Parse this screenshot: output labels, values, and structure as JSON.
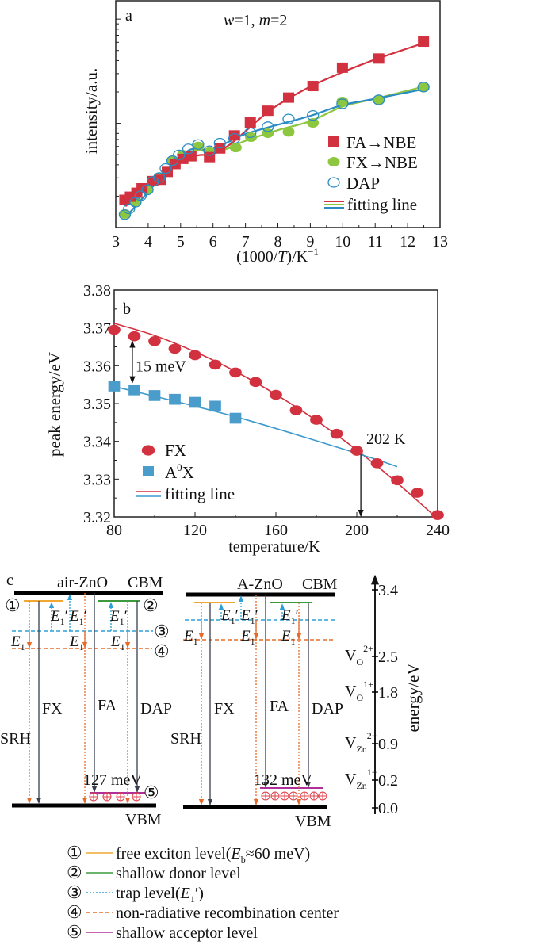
{
  "chart_data": [
    {
      "type": "scatter",
      "panel_label": "a",
      "annotation": {
        "w_var": "w",
        "w_val": "=1, ",
        "m_var": "m",
        "m_val": "=2"
      },
      "xlabel": {
        "pre": "(1000/",
        "var": "T",
        "post": ")/K",
        "sup": "−1"
      },
      "ylabel": "intensity/a.u.",
      "xlim": [
        3,
        13
      ],
      "ylim": [
        0.1,
        15
      ],
      "yscale": "log",
      "ytick_labels_shown": false,
      "xticks": [
        "3",
        "4",
        "5",
        "6",
        "7",
        "8",
        "9",
        "10",
        "11",
        "12",
        "13"
      ],
      "legend_position": "bottom-right",
      "colors": {
        "FA": "#d2313f",
        "FX": "#8dc63f",
        "DAP": "#2b8cc4"
      },
      "series": [
        {
          "name": "FA→NBE",
          "marker": "square",
          "color": "#d2313f",
          "x": [
            3.28,
            3.45,
            3.65,
            3.81,
            4.14,
            4.38,
            4.59,
            4.83,
            5.07,
            5.32,
            5.89,
            6.21,
            6.66,
            7.15,
            7.69,
            8.33,
            9.08,
            9.99,
            11.11,
            12.49
          ],
          "y": [
            0.183,
            0.196,
            0.214,
            0.236,
            0.277,
            0.285,
            0.339,
            0.403,
            0.452,
            0.479,
            0.47,
            0.569,
            0.759,
            1.01,
            1.31,
            1.75,
            2.26,
            3.39,
            4.15,
            6.03
          ],
          "fit_x": [
            3.3,
            4,
            4.5,
            5,
            5.5,
            6,
            6.5,
            7,
            7.5,
            8,
            9,
            10,
            11,
            12.5
          ],
          "fit_y": [
            0.16,
            0.24,
            0.32,
            0.42,
            0.49,
            0.51,
            0.62,
            0.84,
            1.15,
            1.5,
            2.25,
            3.1,
            4.1,
            5.9
          ]
        },
        {
          "name": "FX→NBE",
          "marker": "filled-circle",
          "color": "#8dc63f",
          "x": [
            3.28,
            3.61,
            3.98,
            4.34,
            4.75,
            5.07,
            5.54,
            5.89,
            6.7,
            7.17,
            7.69,
            8.33,
            9.08,
            9.99,
            11.11,
            12.49
          ],
          "y": [
            0.135,
            0.178,
            0.232,
            0.305,
            0.44,
            0.5,
            0.6,
            0.53,
            0.586,
            0.737,
            0.804,
            0.827,
            1.01,
            1.62,
            1.67,
            2.2
          ],
          "fit_x": [
            3.3,
            4,
            4.5,
            5,
            5.5,
            6,
            6.5,
            7,
            8,
            9,
            10,
            11,
            12.5
          ],
          "fit_y": [
            0.125,
            0.22,
            0.33,
            0.48,
            0.55,
            0.53,
            0.58,
            0.68,
            0.86,
            1.05,
            1.45,
            1.72,
            2.25
          ]
        },
        {
          "name": "DAP",
          "marker": "open-circle",
          "color": "#2b8cc4",
          "x": [
            3.28,
            3.41,
            3.61,
            3.77,
            3.98,
            4.14,
            4.34,
            4.54,
            4.75,
            4.95,
            5.24,
            5.54,
            5.89,
            6.21,
            6.66,
            7.15,
            7.69,
            8.33,
            9.08,
            9.99,
            11.11,
            12.49
          ],
          "y": [
            0.133,
            0.151,
            0.175,
            0.202,
            0.23,
            0.277,
            0.302,
            0.369,
            0.439,
            0.498,
            0.569,
            0.627,
            0.546,
            0.646,
            0.716,
            0.813,
            0.928,
            1.1,
            1.19,
            1.54,
            1.68,
            2.23
          ],
          "fit_x": [
            3.3,
            4,
            4.5,
            5,
            5.3,
            5.7,
            6,
            6.5,
            7,
            8,
            9,
            10,
            11,
            12.5
          ],
          "fit_y": [
            0.125,
            0.22,
            0.33,
            0.47,
            0.56,
            0.56,
            0.56,
            0.67,
            0.79,
            0.97,
            1.18,
            1.5,
            1.72,
            2.13
          ]
        }
      ],
      "fit_legend_label": "fitting line"
    },
    {
      "type": "scatter",
      "panel_label": "b",
      "xlabel": "temperature/K",
      "ylabel": "peak energy/eV",
      "xlim": [
        80,
        240
      ],
      "ylim": [
        3.32,
        3.38
      ],
      "xticks": [
        "80",
        "120",
        "160",
        "200",
        "240"
      ],
      "yticks": [
        "3.32",
        "3.33",
        "3.34",
        "3.35",
        "3.36",
        "3.37",
        "3.38"
      ],
      "legend_position": "bottom-left",
      "series": [
        {
          "name": "FX",
          "marker": "filled-circle",
          "color": "#d2313f",
          "x": [
            80,
            90,
            100,
            110,
            120,
            130,
            140,
            150,
            160,
            170,
            180,
            190,
            200,
            210,
            220,
            230,
            240
          ],
          "y": [
            3.3695,
            3.3678,
            3.3665,
            3.3645,
            3.3628,
            3.3603,
            3.3582,
            3.3557,
            3.3523,
            3.3482,
            3.3457,
            3.342,
            3.3375,
            3.3342,
            3.3297,
            3.3264,
            3.3205
          ],
          "fit_x": [
            80,
            100,
            120,
            140,
            160,
            180,
            200,
            220,
            240
          ],
          "fit_y": [
            3.3712,
            3.368,
            3.3637,
            3.3585,
            3.3524,
            3.3455,
            3.3377,
            3.329,
            3.3195
          ]
        },
        {
          "name": "A0X",
          "name_base": "A",
          "name_sup": "0",
          "name_post": "X",
          "marker": "square",
          "color": "#4a9dcb",
          "x": [
            80,
            90,
            100,
            110,
            120,
            130,
            140
          ],
          "y": [
            3.3545,
            3.3535,
            3.352,
            3.351,
            3.3502,
            3.3492,
            3.346
          ],
          "fit_x": [
            80,
            140,
            202,
            220
          ],
          "fit_y": [
            3.3545,
            3.3465,
            3.3365,
            3.3333
          ]
        }
      ],
      "fit_legend_label": "fitting line",
      "annotations": [
        {
          "text": "15 meV",
          "x": 89,
          "y_from": 3.3665,
          "y_to": 3.3555
        },
        {
          "text": "202 K",
          "x": 202,
          "y_from": 3.3365,
          "y_to": 3.32
        }
      ]
    }
  ],
  "diagram": {
    "panel_label": "c",
    "markers": [
      "①",
      "②",
      "③",
      "④",
      "⑤"
    ],
    "e1": {
      "base": "E",
      "sub": "1"
    },
    "e1p": {
      "base": "E",
      "sub": "1",
      "prime": "′"
    },
    "left": {
      "title": "air-ZnO",
      "cbm": "CBM",
      "vbm": "VBM",
      "fx": "FX",
      "fa": "FA",
      "dap": "DAP",
      "srh": "SRH",
      "acceptor_gap": "127 meV"
    },
    "right": {
      "title": "A-ZnO",
      "cbm": "CBM",
      "vbm": "VBM",
      "fx": "FX",
      "fa": "FA",
      "dap": "DAP",
      "srh": "SRH",
      "acceptor_gap": "132 meV"
    },
    "energy_axis": {
      "label": "energy/eV",
      "ticks": [
        {
          "value": "3.4"
        },
        {
          "value": "2.5",
          "defect": {
            "base": "V",
            "sub": "O",
            "sup": "2+"
          }
        },
        {
          "value": "1.8",
          "defect": {
            "base": "V",
            "sub": "O",
            "sup": "1+"
          }
        },
        {
          "value": "0.9",
          "defect": {
            "base": "V",
            "sub": "Zn",
            "sup": "2−"
          }
        },
        {
          "value": "0.2",
          "defect": {
            "base": "V",
            "sub": "Zn",
            "sup": "1−"
          }
        },
        {
          "value": "0.0"
        }
      ]
    },
    "colors": {
      "free_exciton": "#f0a830",
      "shallow_donor": "#3c9a3c",
      "trap": "#2e9fd6",
      "nonradiative": "#e86a28",
      "shallow_acceptor": "#b0309a"
    },
    "legend": [
      {
        "marker": "①",
        "pre": "free exciton level(",
        "var": "E",
        "sub": "b",
        "post": "≈60 meV)",
        "style": "solid",
        "color": "#f0a830"
      },
      {
        "marker": "②",
        "pre": "shallow donor level",
        "style": "solid",
        "color": "#3c9a3c"
      },
      {
        "marker": "③",
        "pre": "trap level(",
        "var": "E",
        "sub": "1",
        "post": "′)",
        "style": "dotted",
        "color": "#2e9fd6"
      },
      {
        "marker": "④",
        "pre": "non-radiative recombination center",
        "style": "dashed",
        "color": "#e86a28"
      },
      {
        "marker": "⑤",
        "pre": "shallow acceptor level",
        "style": "solid",
        "color": "#b0309a"
      }
    ]
  }
}
